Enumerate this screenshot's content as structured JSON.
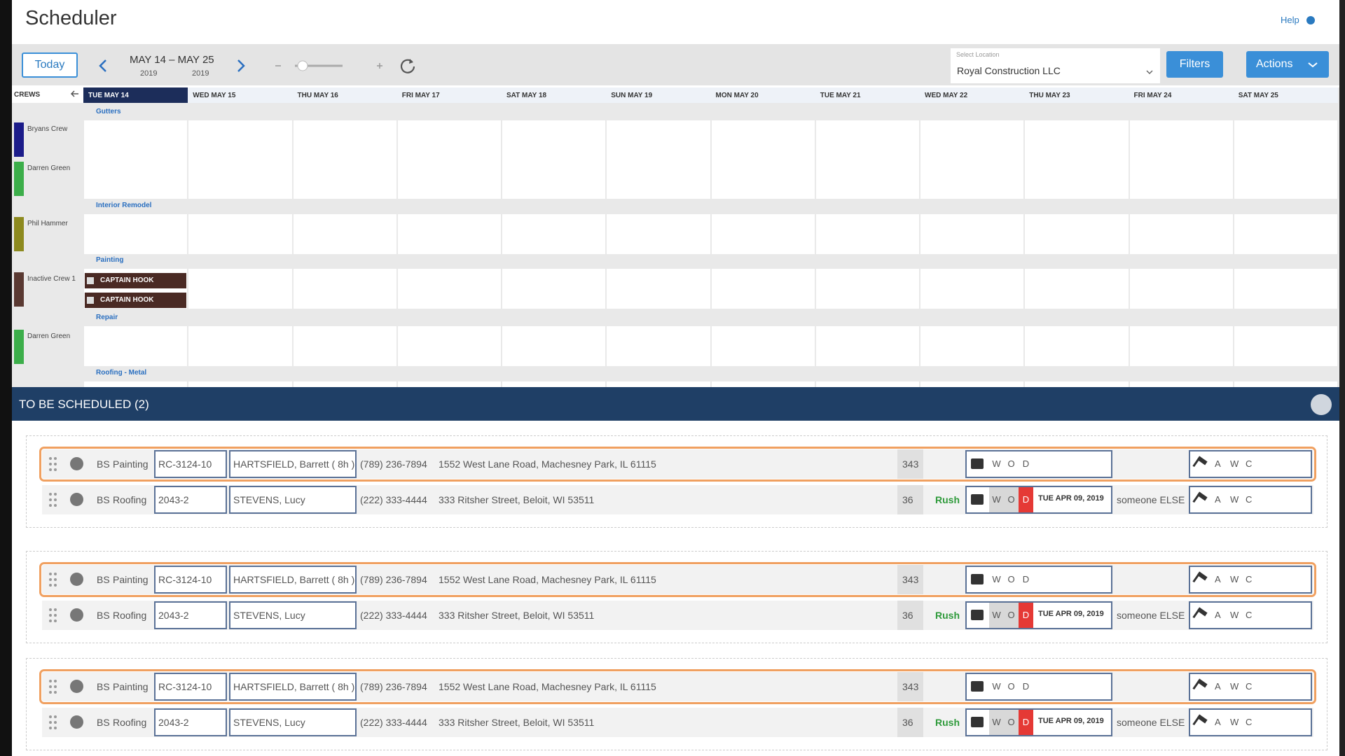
{
  "header": {
    "title": "Scheduler",
    "help": "Help"
  },
  "toolbar": {
    "today": "Today",
    "range": "MAY 14 – MAY 25",
    "year_start": "2019",
    "year_end": "2019",
    "location_label": "Select Location",
    "location": "Royal Construction LLC",
    "filters": "Filters",
    "actions": "Actions"
  },
  "calendar": {
    "crews_label": "CREWS",
    "days": [
      "TUE MAY 14",
      "WED MAY 15",
      "THU MAY 16",
      "FRI MAY 17",
      "SAT MAY 18",
      "SUN MAY 19",
      "MON MAY 20",
      "TUE MAY 21",
      "WED MAY 22",
      "THU MAY 23",
      "FRI MAY 24",
      "SAT MAY 25"
    ],
    "crews": [
      {
        "name": "Bryans Crew",
        "color": "#1c1c8a"
      },
      {
        "name": "Darren Green",
        "color": "#3cae4a"
      },
      {
        "name": "Phil Hammer",
        "color": "#8d8a1f"
      },
      {
        "name": "Inactive Crew 1",
        "color": "#5a3932"
      },
      {
        "name": "Darren Green",
        "color": "#3cae4a"
      }
    ],
    "groups": [
      "Gutters",
      "Interior Remodel",
      "Painting",
      "Repair",
      "Roofing - Metal"
    ],
    "events": [
      {
        "label": "CAPTAIN HOOK"
      },
      {
        "label": "CAPTAIN HOOK"
      }
    ]
  },
  "queue": {
    "title": "TO BE SCHEDULED (2)",
    "blocks": [
      {
        "rows": [
          {
            "type": "BS",
            "trade": "Painting",
            "job": "RC-3124-10",
            "customer": "HARTSFIELD, Barrett ( 8h )",
            "phone": "(789) 236-7894",
            "address": "1552 West Lane Road, Machesney Park, IL 61115",
            "count": 343,
            "work_status": [
              "W",
              "O",
              "D"
            ],
            "crew_status": [
              "A",
              "W",
              "C"
            ],
            "highlight": true
          },
          {
            "type": "BS",
            "trade": "Roofing",
            "job": "2043-2",
            "customer": "STEVENS, Lucy",
            "phone": "(222) 333-4444",
            "address": "333 Ritsher Street, Beloit, WI 53511",
            "count": 36,
            "rush": "Rush",
            "work_status": [
              "W",
              "O",
              "D"
            ],
            "date": "TUE APR 09, 2019",
            "assignee": "someone ELSE",
            "crew_status": [
              "A",
              "W",
              "C"
            ],
            "alert": true
          }
        ]
      },
      {
        "rows": [
          {
            "type": "BS",
            "trade": "Painting",
            "job": "RC-3124-10",
            "customer": "HARTSFIELD, Barrett ( 8h )",
            "phone": "(789) 236-7894",
            "address": "1552 West Lane Road, Machesney Park, IL 61115",
            "count": 343,
            "work_status": [
              "W",
              "O",
              "D"
            ],
            "crew_status": [
              "A",
              "W",
              "C"
            ],
            "highlight": true
          },
          {
            "type": "BS",
            "trade": "Roofing",
            "job": "2043-2",
            "customer": "STEVENS, Lucy",
            "phone": "(222) 333-4444",
            "address": "333 Ritsher Street, Beloit, WI 53511",
            "count": 36,
            "rush": "Rush",
            "work_status": [
              "W",
              "O",
              "D"
            ],
            "date": "TUE APR 09, 2019",
            "assignee": "someone ELSE",
            "crew_status": [
              "A",
              "W",
              "C"
            ],
            "alert": true
          }
        ]
      },
      {
        "rows": [
          {
            "type": "BS",
            "trade": "Painting",
            "job": "RC-3124-10",
            "customer": "HARTSFIELD, Barrett ( 8h )",
            "phone": "(789) 236-7894",
            "address": "1552 West Lane Road, Machesney Park, IL 61115",
            "count": 343,
            "work_status": [
              "W",
              "O",
              "D"
            ],
            "crew_status": [
              "A",
              "W",
              "C"
            ],
            "highlight": true
          },
          {
            "type": "BS",
            "trade": "Roofing",
            "job": "2043-2",
            "customer": "STEVENS, Lucy",
            "phone": "(222) 333-4444",
            "address": "333 Ritsher Street, Beloit, WI 53511",
            "count": 36,
            "rush": "Rush",
            "work_status": [
              "W",
              "O",
              "D"
            ],
            "date": "TUE APR 09, 2019",
            "assignee": "someone ELSE",
            "crew_status": [
              "A",
              "W",
              "C"
            ],
            "alert": true
          }
        ]
      }
    ]
  }
}
